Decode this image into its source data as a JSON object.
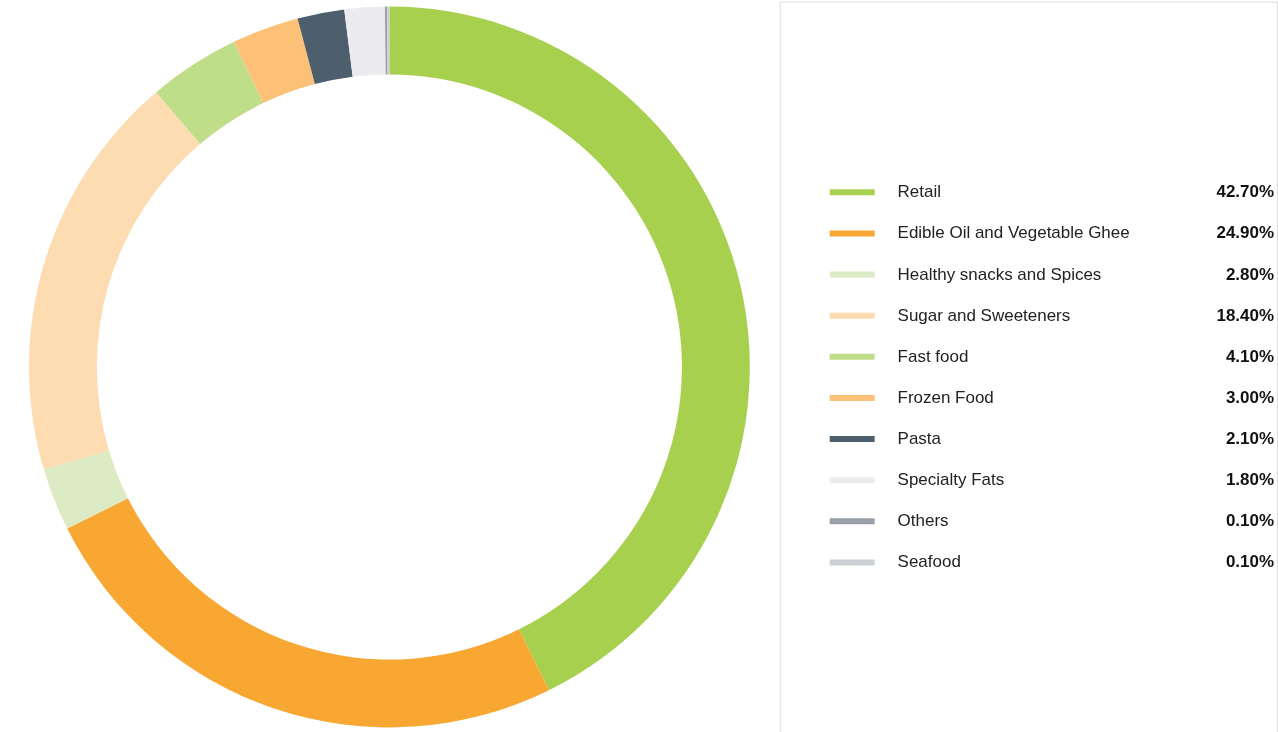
{
  "chart_data": {
    "type": "donut",
    "categories": [
      "Retail",
      "Edible Oil and Vegetable Ghee",
      "Healthy snacks and Spices",
      "Sugar and Sweeteners",
      "Fast food",
      "Frozen Food",
      "Pasta",
      "Specialty Fats",
      "Others",
      "Seafood"
    ],
    "values": [
      42.7,
      24.9,
      2.8,
      18.4,
      4.1,
      3.0,
      2.1,
      1.8,
      0.1,
      0.1
    ],
    "colors": [
      "#a8d04f",
      "#f9a733",
      "#dcebc3",
      "#fddcb2",
      "#c0dd8a",
      "#fcc176",
      "#4d5e6d",
      "#ebebf0",
      "#9aa0a8",
      "#cdd1d6"
    ],
    "value_labels": [
      "42.70%",
      "24.90%",
      "2.80%",
      "18.40%",
      "4.10%",
      "3.00%",
      "2.10%",
      "1.80%",
      "0.10%",
      "0.10%"
    ],
    "legend": "right"
  }
}
